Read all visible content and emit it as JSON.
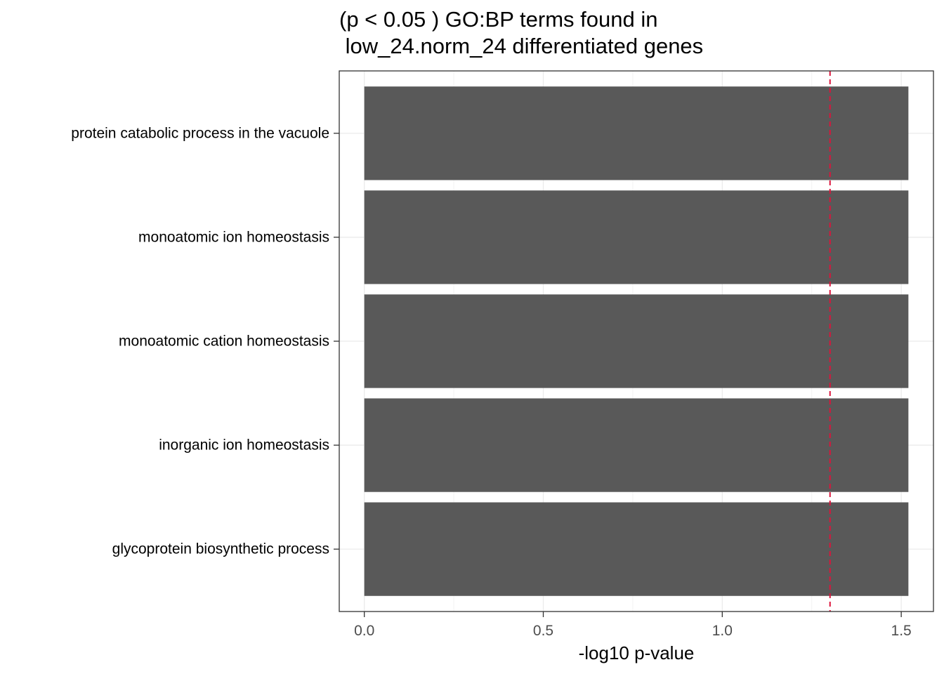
{
  "chart_data": {
    "type": "bar",
    "orientation": "horizontal",
    "title_lines": [
      "(p < 0.05 ) GO:BP terms found in",
      " low_24.norm_24 differentiated genes"
    ],
    "xlabel": "-log10 p-value",
    "ylabel": "",
    "categories": [
      "protein catabolic process in the vacuole",
      "monoatomic ion homeostasis",
      "monoatomic cation homeostasis",
      "inorganic ion homeostasis",
      "glycoprotein biosynthetic process"
    ],
    "values": [
      1.52,
      1.52,
      1.52,
      1.52,
      1.52
    ],
    "xlim": [
      -0.07,
      1.59
    ],
    "xticks": [
      0.0,
      0.5,
      1.0,
      1.5
    ],
    "xtick_labels": [
      "0.0",
      "0.5",
      "1.0",
      "1.5"
    ],
    "threshold_line": {
      "value": 1.30103,
      "style": "dashed",
      "color": "#dc143c"
    },
    "bar_color": "#595959",
    "grid": true,
    "legend": "none"
  }
}
